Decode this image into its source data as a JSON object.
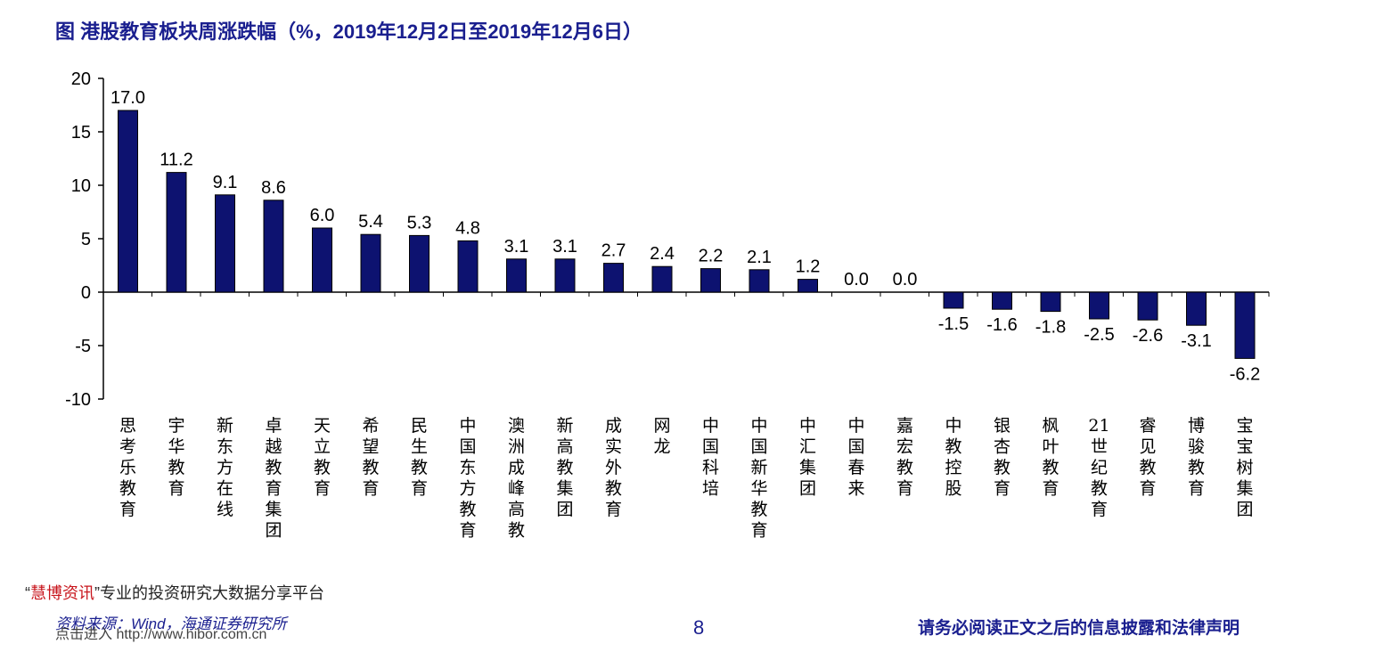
{
  "title": "图  港股教育板块周涨跌幅（%，2019年12月2日至2019年12月6日）",
  "chart_data": {
    "type": "bar",
    "categories": [
      "思考乐教育",
      "宇华教育",
      "新东方在线",
      "卓越教育集团",
      "天立教育",
      "希望教育",
      "民生教育",
      "中国东方教育",
      "澳洲成峰高教",
      "新高教集团",
      "成实外教育",
      "网龙",
      "中国科培",
      "中国新华教育",
      "中汇集团",
      "中国春来",
      "嘉宏教育",
      "中教控股",
      "银杏教育",
      "枫叶教育",
      "21世纪教育",
      "睿见教育",
      "博骏教育",
      "宝宝树集团"
    ],
    "values": [
      17.0,
      11.2,
      9.1,
      8.6,
      6.0,
      5.4,
      5.3,
      4.8,
      3.1,
      3.1,
      2.7,
      2.4,
      2.2,
      2.1,
      1.2,
      0.0,
      0.0,
      -1.5,
      -1.6,
      -1.8,
      -2.5,
      -2.6,
      -3.1,
      -6.2
    ],
    "value_labels": [
      "17.0",
      "11.2",
      "9.1",
      "8.6",
      "6.0",
      "5.4",
      "5.3",
      "4.8",
      "3.1",
      "3.1",
      "2.7",
      "2.4",
      "2.2",
      "2.1",
      "1.2",
      "0.0",
      "0.0",
      "-1.5",
      "-1.6",
      "-1.8",
      "-2.5",
      "-2.6",
      "-3.1",
      "-6.2"
    ],
    "yticks": [
      20,
      15,
      10,
      5,
      0,
      -5,
      -10
    ],
    "ylim": [
      -10,
      20
    ],
    "bar_color": "#0d1270"
  },
  "footer": {
    "brand_open": "“",
    "brand": "慧博资讯",
    "brand_close": "”",
    "tagline": "专业的投资研究大数据分享平台",
    "source": "资料来源：Wind，海通证券研究所",
    "link": "点击进入 http://www.hibor.com.cn",
    "page": "8",
    "disclaimer": "请务必阅读正文之后的信息披露和法律声明"
  }
}
